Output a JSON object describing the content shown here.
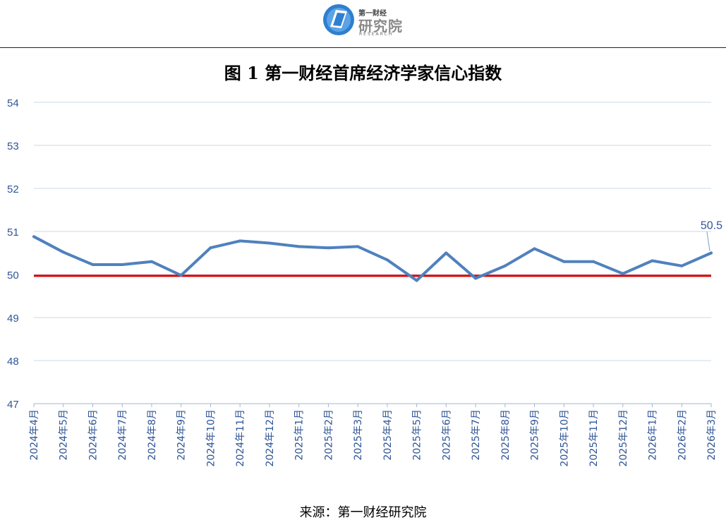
{
  "header": {
    "logo_top": "第一财经",
    "logo_main": "研究院",
    "logo_sub": "RESEARCH"
  },
  "colors": {
    "series": "#4f81bd",
    "baseline": "#e00000",
    "grid": "#c8d7ea",
    "tick_text": "#2f5597"
  },
  "chart_data": {
    "type": "line",
    "title": "图 1 第一财经首席经济学家信心指数",
    "xlabel": "",
    "ylabel": "",
    "ylim": [
      47,
      54
    ],
    "yticks": [
      47,
      48,
      49,
      50,
      51,
      52,
      53,
      54
    ],
    "grid": true,
    "categories": [
      "2024年4月",
      "2024年5月",
      "2024年6月",
      "2024年7月",
      "2024年8月",
      "2024年9月",
      "2024年10月",
      "2024年11月",
      "2024年12月",
      "2025年1月",
      "2025年2月",
      "2025年3月",
      "2025年4月",
      "2025年5月",
      "2025年6月",
      "2025年7月",
      "2025年8月",
      "2025年9月",
      "2025年10月",
      "2025年11月",
      "2025年12月",
      "2026年1月",
      "2026年2月",
      "2026年3月"
    ],
    "series": [
      {
        "values": [
          50.88,
          50.52,
          50.23,
          50.23,
          50.3,
          49.98,
          50.62,
          50.78,
          50.73,
          50.65,
          50.62,
          50.65,
          50.34,
          49.86,
          50.5,
          49.91,
          50.2,
          50.6,
          50.3,
          50.3,
          50.02,
          50.32,
          50.2,
          50.5
        ]
      }
    ],
    "reference_line": {
      "value": 49.97
    },
    "annotation": {
      "text": "50.5",
      "category_index": 23
    }
  },
  "footer": {
    "source": "来源：第一财经研究院"
  }
}
